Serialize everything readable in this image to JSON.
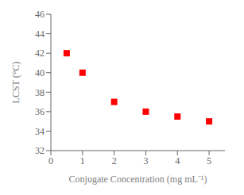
{
  "chart_data": {
    "type": "scatter",
    "x": [
      0.5,
      1.0,
      2.0,
      3.0,
      4.0,
      5.0
    ],
    "values": [
      42.0,
      40.0,
      37.0,
      36.0,
      35.5,
      35.0
    ],
    "color": "#ff0000",
    "marker": "square",
    "xlabel": "Conjugate Concentration (mg mL⁻¹)",
    "ylabel": "LCST (°C)",
    "xlim": [
      0,
      5.5
    ],
    "ylim": [
      32,
      46
    ],
    "xticks": [
      0,
      1,
      2,
      3,
      4,
      5
    ],
    "yticks": [
      32,
      34,
      36,
      38,
      40,
      42,
      44,
      46
    ],
    "grid": false
  }
}
